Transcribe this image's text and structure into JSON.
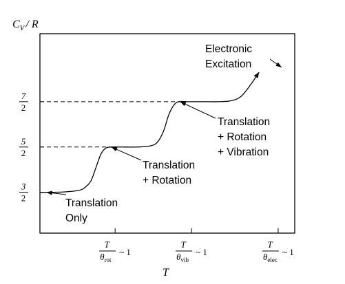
{
  "chart_data": {
    "type": "line",
    "title": "",
    "ylabel": {
      "main": "C",
      "sub": "V",
      "rest": "/ R"
    },
    "xlabel": "T",
    "y_ticks": [
      {
        "value": 1.5,
        "num": "3",
        "den": "2"
      },
      {
        "value": 2.5,
        "num": "5",
        "den": "2"
      },
      {
        "value": 3.5,
        "num": "7",
        "den": "2"
      }
    ],
    "x_ticks": [
      {
        "num": "T",
        "den_main": "θ",
        "den_sub": "rot",
        "tail": "~ 1"
      },
      {
        "num": "T",
        "den_main": "θ",
        "den_sub": "vib",
        "tail": "~ 1"
      },
      {
        "num": "T",
        "den_main": "θ",
        "den_sub": "elec",
        "tail": "~ 1"
      }
    ],
    "dashed_reference_levels": [
      2.5,
      3.5
    ],
    "x_range": [
      0,
      10
    ],
    "y_range": [
      0.6,
      5.0
    ],
    "series": [
      {
        "points": [
          [
            0.0,
            1.5
          ],
          [
            0.5,
            1.5
          ],
          [
            1.0,
            1.51
          ],
          [
            1.5,
            1.54
          ],
          [
            1.75,
            1.6
          ],
          [
            2.0,
            1.75
          ],
          [
            2.2,
            2.05
          ],
          [
            2.4,
            2.35
          ],
          [
            2.6,
            2.48
          ],
          [
            2.85,
            2.5
          ],
          [
            3.2,
            2.5
          ],
          [
            3.8,
            2.5
          ],
          [
            4.3,
            2.52
          ],
          [
            4.6,
            2.6
          ],
          [
            4.85,
            2.85
          ],
          [
            5.05,
            3.2
          ],
          [
            5.25,
            3.42
          ],
          [
            5.45,
            3.5
          ],
          [
            5.8,
            3.5
          ],
          [
            6.4,
            3.5
          ],
          [
            7.0,
            3.5
          ],
          [
            7.5,
            3.52
          ],
          [
            7.9,
            3.62
          ],
          [
            8.3,
            3.9
          ],
          [
            8.6,
            4.15
          ]
        ]
      }
    ],
    "annotations": [
      {
        "lines": [
          "Translation",
          "Only"
        ],
        "x": 0.25,
        "y": 1.5
      },
      {
        "lines": [
          "Translation",
          "+ Rotation"
        ],
        "x": 2.8,
        "y": 2.5
      },
      {
        "lines": [
          "Translation",
          "+ Rotation",
          "+ Vibration"
        ],
        "x": 5.5,
        "y": 3.5
      },
      {
        "lines": [
          "Electronic",
          "Excitation"
        ],
        "x": 9.5,
        "y": 4.3
      }
    ]
  }
}
